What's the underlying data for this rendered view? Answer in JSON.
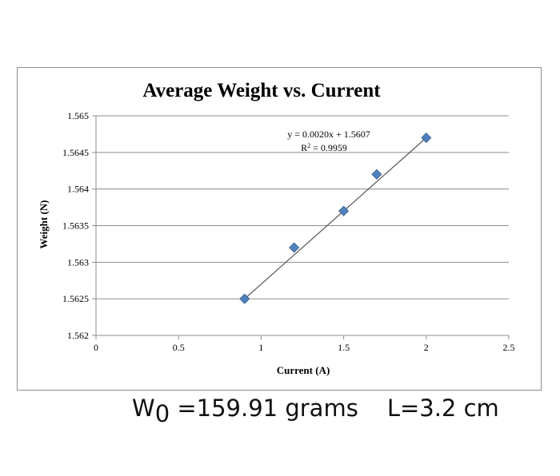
{
  "chart_data": {
    "type": "scatter",
    "title": "Average Weight vs. Current",
    "xlabel": "Current (A)",
    "ylabel": "Weight (N)",
    "xlim": [
      0,
      2.5
    ],
    "ylim": [
      1.562,
      1.565
    ],
    "x_ticks": [
      "0",
      "0.5",
      "1",
      "1.5",
      "2",
      "2.5"
    ],
    "y_ticks": [
      "1.562",
      "1.5625",
      "1.563",
      "1.5635",
      "1.564",
      "1.5645",
      "1.565"
    ],
    "grid": true,
    "legend": "none",
    "marker": "diamond",
    "marker_color": "#4f81bd",
    "trendline_color": "#555555",
    "points": [
      {
        "x": 0.9,
        "y": 1.5625
      },
      {
        "x": 1.2,
        "y": 1.5632
      },
      {
        "x": 1.5,
        "y": 1.5637
      },
      {
        "x": 1.7,
        "y": 1.5642
      },
      {
        "x": 2.0,
        "y": 1.5647
      }
    ],
    "trendline": {
      "slope": 0.002,
      "intercept": 1.5607,
      "x_range": [
        0.9,
        2.0
      ],
      "equation": "y = 0.0020x + 1.5607",
      "r_squared_label": "R",
      "r_squared_sup": "2",
      "r_squared_value": " = 0.9959"
    }
  },
  "caption": {
    "w_main": "W",
    "w_sub": "0",
    "w_text": " =159.91 grams",
    "l_text": "L=3.2 cm"
  }
}
